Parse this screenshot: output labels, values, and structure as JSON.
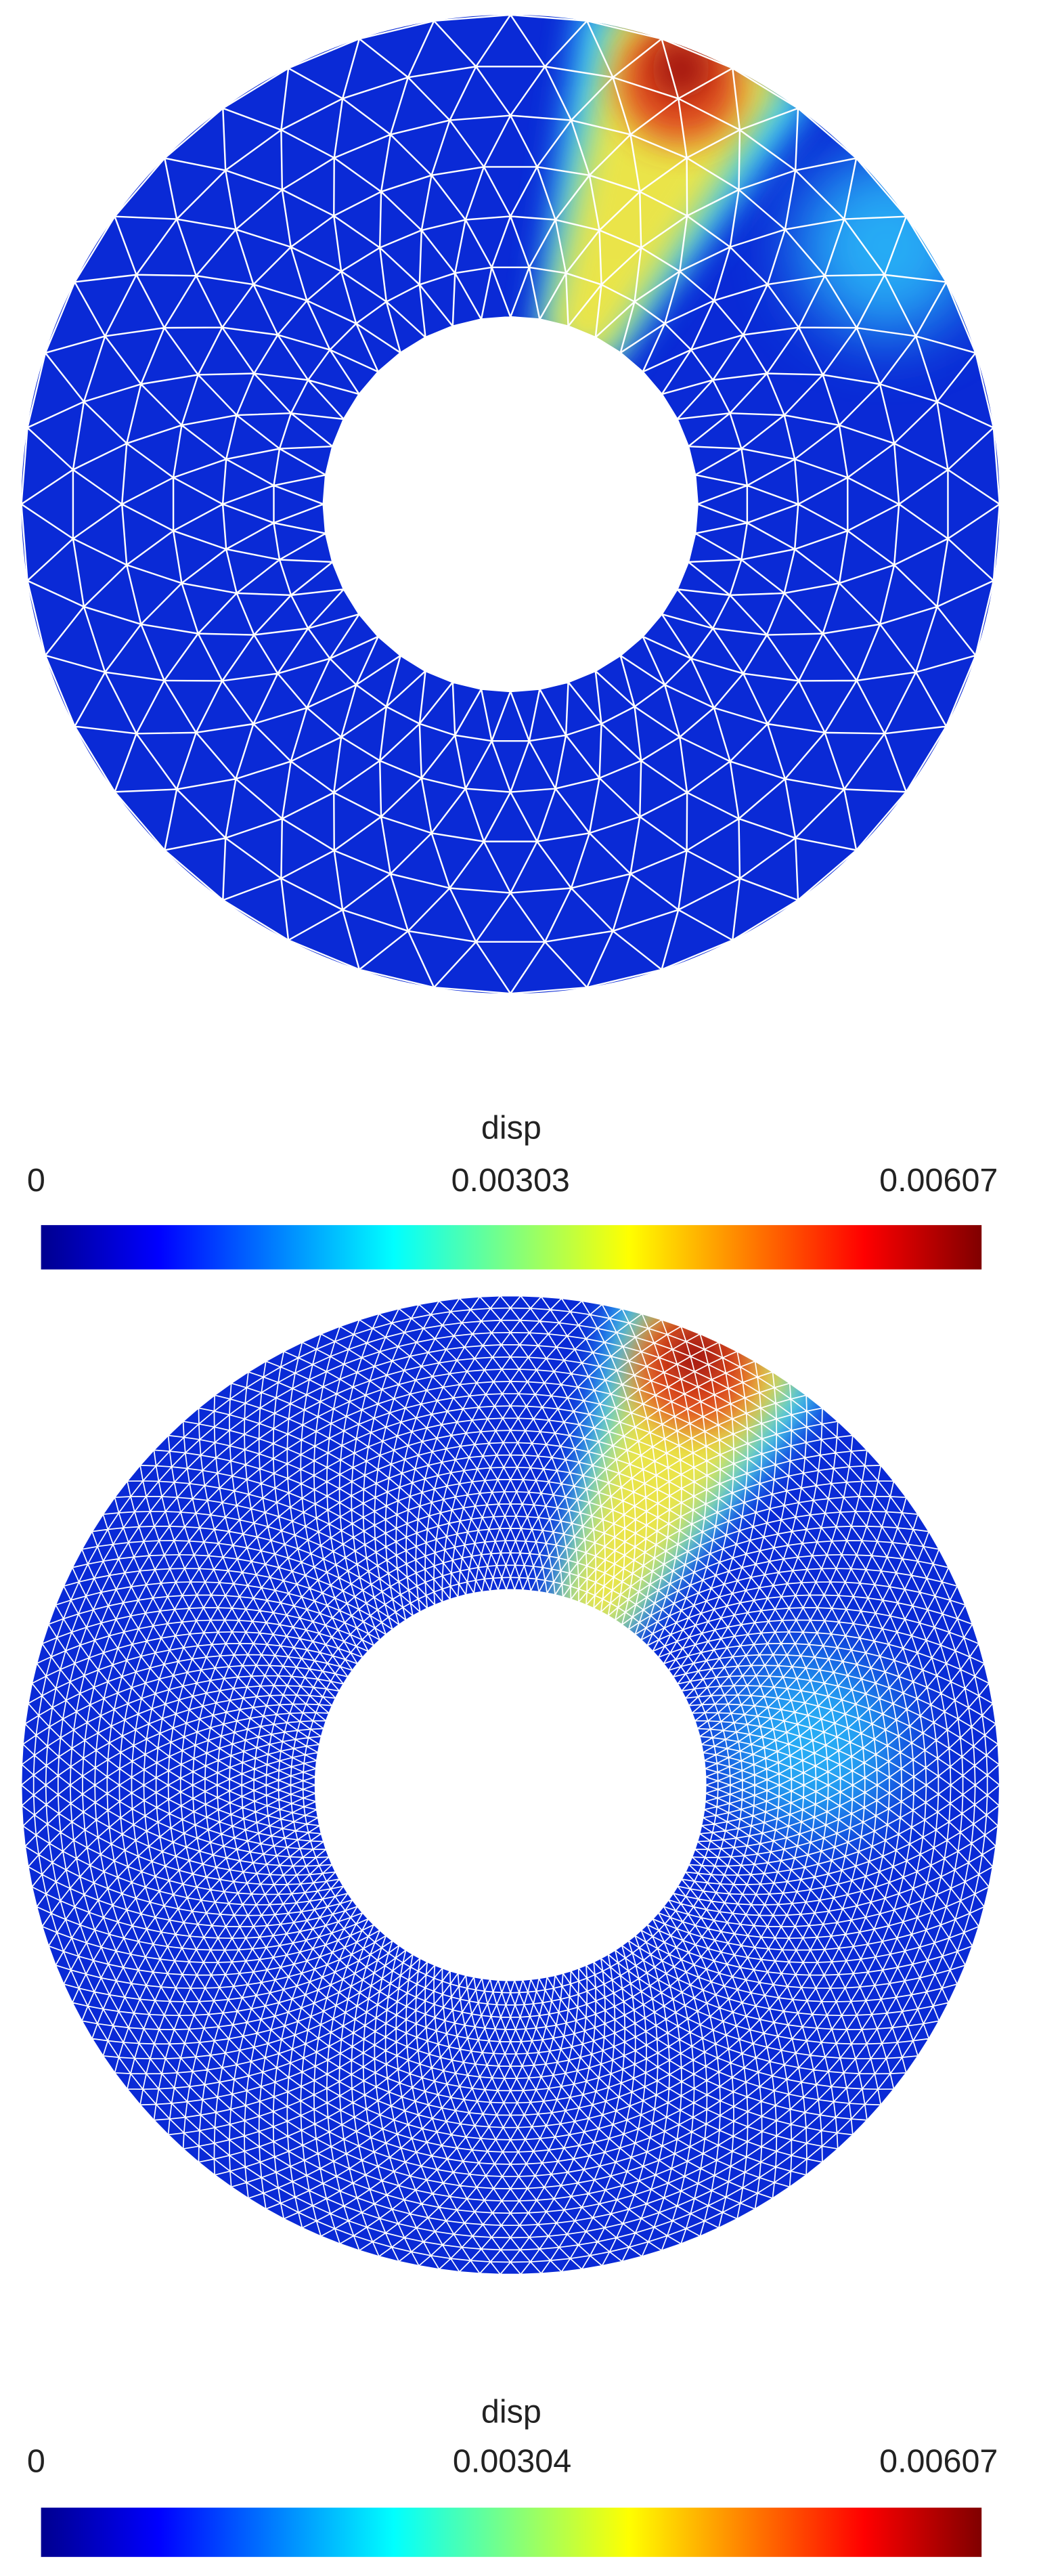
{
  "panels": [
    {
      "colorbar": {
        "label": "disp",
        "lim": [
          0,
          0.00607
        ],
        "ticks": [
          0,
          0.00303,
          0.00607
        ]
      }
    },
    {
      "colorbar": {
        "label": "disp",
        "lim": [
          0,
          0.00607
        ],
        "ticks": [
          0,
          0.00304,
          0.00607
        ]
      }
    }
  ]
}
